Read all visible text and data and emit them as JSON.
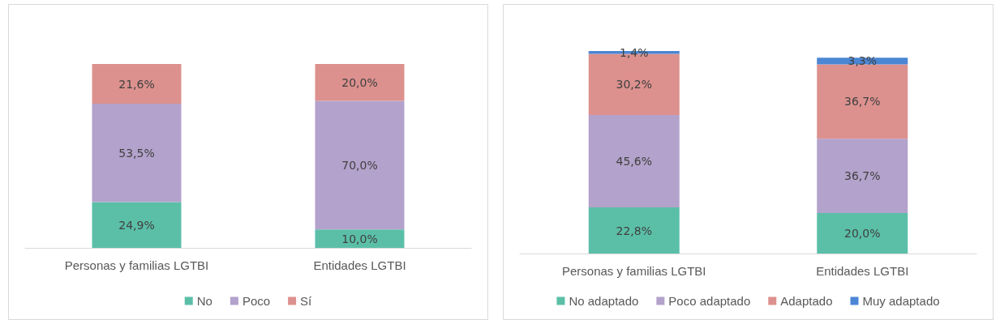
{
  "chart_data": [
    {
      "type": "bar",
      "stacked": true,
      "categories": [
        "Personas y familias LGTBI",
        "Entidades LGTBI"
      ],
      "series": [
        {
          "name": "No",
          "color": "#5bbfa8",
          "values": [
            24.9,
            10.0
          ],
          "value_labels": [
            "24,9%",
            "10,0%"
          ]
        },
        {
          "name": "Poco",
          "color": "#b3a2cb",
          "values": [
            53.5,
            70.0
          ],
          "value_labels": [
            "53,5%",
            "70,0%"
          ]
        },
        {
          "name": "Sí",
          "color": "#dc918e",
          "values": [
            21.6,
            20.0
          ],
          "value_labels": [
            "21,6%",
            "20,0%"
          ]
        }
      ],
      "legend": "bottom",
      "tick_labels": "x"
    },
    {
      "type": "bar",
      "stacked": true,
      "categories": [
        "Personas y familias LGTBI",
        "Entidades LGTBI"
      ],
      "series": [
        {
          "name": "No adaptado",
          "color": "#5bbfa8",
          "values": [
            22.8,
            20.0
          ],
          "value_labels": [
            "22,8%",
            "20,0%"
          ]
        },
        {
          "name": "Poco adaptado",
          "color": "#b3a2cb",
          "values": [
            45.6,
            36.7
          ],
          "value_labels": [
            "45,6%",
            "36,7%"
          ]
        },
        {
          "name": "Adaptado",
          "color": "#dc918e",
          "values": [
            30.2,
            36.7
          ],
          "value_labels": [
            "30,2%",
            "36,7%"
          ]
        },
        {
          "name": "Muy adaptado",
          "color": "#4a86d4",
          "values": [
            1.4,
            3.3
          ],
          "value_labels": [
            "1,4%",
            "3,3%"
          ]
        }
      ],
      "legend": "bottom",
      "tick_labels": "x"
    }
  ]
}
